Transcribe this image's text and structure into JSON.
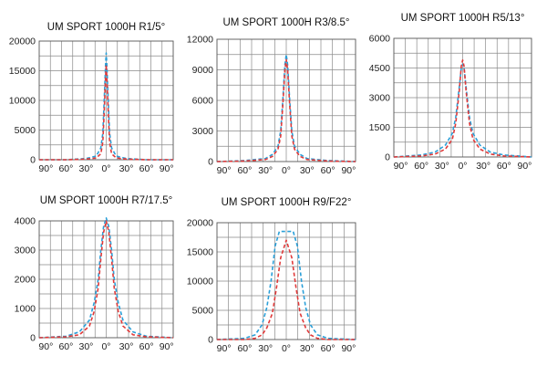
{
  "colors": {
    "series_a": "#2a9fd8",
    "series_b": "#e03a3a"
  },
  "chart_data": [
    {
      "type": "line",
      "title": "UM SPORT 1000H R1/5°",
      "ylim": [
        0,
        20000
      ],
      "yticks": [
        "0",
        "5000",
        "10000",
        "15000",
        "20000"
      ],
      "xlim": [
        -100,
        100
      ],
      "xticks": [
        "90°",
        "60°",
        "30°",
        "0°",
        "30°",
        "60°",
        "90°"
      ],
      "grid": true,
      "series": [
        {
          "color": "series_a",
          "x": [
            -100,
            -60,
            -30,
            -15,
            -8,
            -5,
            -3,
            -1,
            0,
            1,
            3,
            5,
            8,
            15,
            30,
            60,
            100
          ],
          "y": [
            0,
            0,
            200,
            600,
            2000,
            4500,
            10000,
            16000,
            18000,
            16000,
            10000,
            4500,
            2000,
            600,
            200,
            0,
            0
          ]
        },
        {
          "color": "series_b",
          "x": [
            -100,
            -60,
            -30,
            -15,
            -8,
            -5,
            -3,
            -1,
            0,
            1,
            3,
            5,
            8,
            15,
            30,
            60,
            100
          ],
          "y": [
            0,
            0,
            100,
            300,
            1000,
            3000,
            8000,
            14000,
            16000,
            14000,
            8000,
            3000,
            1000,
            300,
            100,
            0,
            0
          ]
        }
      ]
    },
    {
      "type": "line",
      "title": "UM SPORT 1000H R3/8.5°",
      "ylim": [
        0,
        12000
      ],
      "yticks": [
        "0",
        "3000",
        "6000",
        "9000",
        "12000"
      ],
      "xlim": [
        -100,
        100
      ],
      "xticks": [
        "90°",
        "60°",
        "30°",
        "0°",
        "30°",
        "60°",
        "90°"
      ],
      "grid": true,
      "series": [
        {
          "color": "series_a",
          "x": [
            -100,
            -60,
            -30,
            -20,
            -12,
            -8,
            -5,
            -2,
            0,
            2,
            5,
            8,
            12,
            20,
            30,
            60,
            100
          ],
          "y": [
            0,
            100,
            300,
            700,
            1500,
            3000,
            6000,
            9500,
            10500,
            9500,
            6000,
            3000,
            1500,
            700,
            300,
            100,
            0
          ]
        },
        {
          "color": "series_b",
          "x": [
            -100,
            -60,
            -30,
            -20,
            -12,
            -8,
            -5,
            -2,
            0,
            2,
            5,
            8,
            12,
            20,
            30,
            60,
            100
          ],
          "y": [
            0,
            50,
            200,
            500,
            1200,
            2500,
            5500,
            9000,
            10000,
            9000,
            5500,
            2500,
            1200,
            500,
            200,
            50,
            0
          ]
        }
      ]
    },
    {
      "type": "line",
      "title": "UM SPORT 1000H R5/13°",
      "ylim": [
        0,
        6000
      ],
      "yticks": [
        "0",
        "1500",
        "3000",
        "4500",
        "6000"
      ],
      "xlim": [
        -100,
        100
      ],
      "xticks": [
        "90°",
        "60°",
        "30°",
        "0°",
        "30°",
        "60°",
        "90°"
      ],
      "grid": true,
      "series": [
        {
          "color": "series_a",
          "x": [
            -100,
            -60,
            -40,
            -25,
            -15,
            -10,
            -5,
            -2,
            0,
            2,
            5,
            10,
            15,
            25,
            40,
            60,
            100
          ],
          "y": [
            0,
            100,
            250,
            600,
            1200,
            2000,
            3500,
            4500,
            4700,
            4500,
            3500,
            2000,
            1200,
            600,
            250,
            100,
            0
          ]
        },
        {
          "color": "series_b",
          "x": [
            -100,
            -60,
            -40,
            -25,
            -15,
            -10,
            -5,
            -2,
            0,
            2,
            5,
            10,
            15,
            25,
            40,
            60,
            100
          ],
          "y": [
            0,
            50,
            150,
            400,
            900,
            1700,
            3300,
            4600,
            4900,
            4600,
            3300,
            1700,
            900,
            400,
            150,
            50,
            0
          ]
        }
      ]
    },
    {
      "type": "line",
      "title": "UM SPORT 1000H R7/17.5°",
      "ylim": [
        0,
        4000
      ],
      "yticks": [
        "0",
        "1000",
        "2000",
        "3000",
        "4000"
      ],
      "xlim": [
        -100,
        100
      ],
      "xticks": [
        "90°",
        "60°",
        "30°",
        "0°",
        "30°",
        "60°",
        "90°"
      ],
      "grid": true,
      "series": [
        {
          "color": "series_a",
          "x": [
            -100,
            -60,
            -40,
            -25,
            -18,
            -12,
            -8,
            -4,
            0,
            4,
            8,
            12,
            18,
            25,
            40,
            60,
            100
          ],
          "y": [
            0,
            50,
            200,
            600,
            1200,
            2000,
            3000,
            3800,
            4100,
            3800,
            3000,
            2000,
            1200,
            600,
            200,
            50,
            0
          ]
        },
        {
          "color": "series_b",
          "x": [
            -100,
            -60,
            -40,
            -25,
            -18,
            -12,
            -8,
            -4,
            0,
            4,
            8,
            12,
            18,
            25,
            40,
            60,
            100
          ],
          "y": [
            0,
            30,
            100,
            400,
            900,
            1700,
            2700,
            3600,
            4000,
            3600,
            2700,
            1700,
            900,
            400,
            100,
            30,
            0
          ]
        }
      ]
    },
    {
      "type": "line",
      "title": "UM SPORT 1000H R9/F22°",
      "ylim": [
        0,
        20000
      ],
      "yticks": [
        "0",
        "5000",
        "10000",
        "15000",
        "20000"
      ],
      "xlim": [
        -100,
        100
      ],
      "xticks": [
        "90°",
        "60°",
        "30°",
        "0°",
        "30°",
        "60°",
        "90°"
      ],
      "grid": true,
      "series": [
        {
          "color": "series_a",
          "x": [
            -100,
            -60,
            -45,
            -35,
            -28,
            -22,
            -16,
            -10,
            0,
            10,
            16,
            22,
            28,
            35,
            45,
            60,
            100
          ],
          "y": [
            0,
            200,
            800,
            2500,
            5500,
            10000,
            16000,
            18500,
            18500,
            18500,
            16000,
            10000,
            5500,
            2500,
            800,
            200,
            0
          ]
        },
        {
          "color": "series_b",
          "x": [
            -100,
            -60,
            -45,
            -35,
            -28,
            -20,
            -14,
            -8,
            0,
            8,
            14,
            20,
            28,
            35,
            45,
            60,
            100
          ],
          "y": [
            0,
            0,
            200,
            800,
            2000,
            4500,
            9000,
            14000,
            17000,
            14000,
            9000,
            4500,
            2000,
            800,
            200,
            0,
            0
          ]
        }
      ]
    }
  ]
}
